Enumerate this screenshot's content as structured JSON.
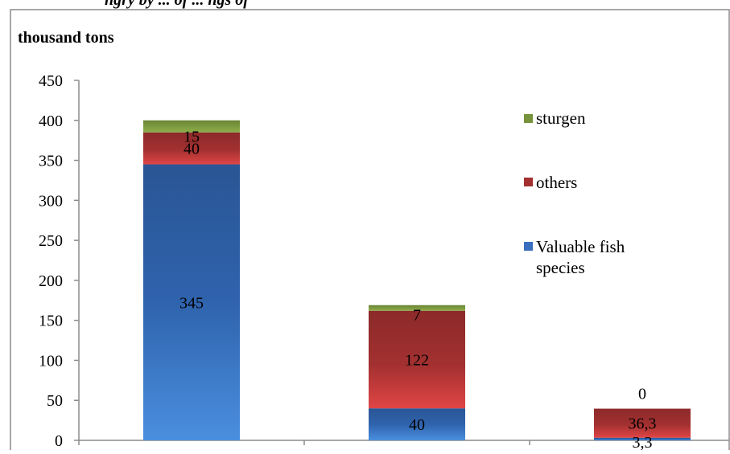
{
  "caption_fragment": "ngry by ... of ... ngs of",
  "chart_data": {
    "type": "bar",
    "stacked": true,
    "unit_label": "thousand tons",
    "categories": [
      "",
      "",
      ""
    ],
    "series": [
      {
        "name": "Valuable fish species",
        "values": [
          345,
          40,
          3.3
        ],
        "labels": [
          "345",
          "40",
          "3,3"
        ],
        "color": "#3a6fc0"
      },
      {
        "name": "others",
        "values": [
          40,
          122,
          36.3
        ],
        "labels": [
          "40",
          "122",
          "36,3"
        ],
        "color": "#a33030"
      },
      {
        "name": "sturgen",
        "values": [
          15,
          7,
          0
        ],
        "labels": [
          "15",
          "7",
          "0"
        ],
        "color": "#77933c"
      }
    ],
    "ylim": [
      0,
      450
    ],
    "yticks": [
      "0",
      "50",
      "100",
      "150",
      "200",
      "250",
      "300",
      "350",
      "400",
      "450"
    ],
    "grid": false,
    "legend_position": "right"
  }
}
